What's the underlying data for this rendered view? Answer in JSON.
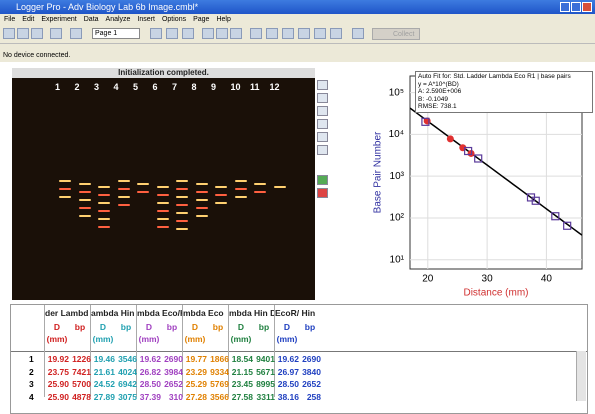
{
  "window": {
    "title": "Logger Pro - Adv Biology Lab 6b Image.cmbl*"
  },
  "menu": [
    "File",
    "Edit",
    "Experiment",
    "Data",
    "Analyze",
    "Insert",
    "Options",
    "Page",
    "Help"
  ],
  "toolbar": {
    "page": "Page 1",
    "collect": "Collect"
  },
  "status": "No device connected.",
  "image": {
    "caption": "Initialization completed.",
    "lanes": [
      "1",
      "2",
      "3",
      "4",
      "5",
      "6",
      "7",
      "8",
      "9",
      "10",
      "11",
      "12"
    ]
  },
  "graph": {
    "type": "scatter",
    "ylabel": "Base Pair Number",
    "xlabel": "Distance (mm)",
    "xlim": [
      17,
      46
    ],
    "xticks": [
      20,
      30,
      40
    ],
    "log_y": true,
    "ylim": [
      6,
      250000
    ],
    "yticks": [
      {
        "value": 10,
        "label": "10¹"
      },
      {
        "value": 100,
        "label": "10²"
      },
      {
        "value": 1000,
        "label": "10³"
      },
      {
        "value": 10000,
        "label": "10⁴"
      },
      {
        "value": 100000,
        "label": "10⁵"
      }
    ],
    "series": [
      {
        "name": "Std. Ladder Lambda Eco R1",
        "color": "#e03030",
        "marker": "circle",
        "x": [
          19.9,
          23.8,
          25.9,
          27.3
        ],
        "values": [
          21000,
          7800,
          4800,
          3500
        ]
      },
      {
        "name": "Lambda Eco/Hin",
        "color": "#5a3a9a",
        "marker": "square",
        "x": [
          19.6,
          26.8,
          28.5,
          37.4,
          38.2,
          41.5,
          43.5
        ],
        "values": [
          20000,
          4000,
          2650,
          310,
          258,
          110,
          65
        ]
      }
    ],
    "fit": {
      "A": 2590000,
      "B": -0.1049
    },
    "annotation": [
      "Auto Fit for: Std. Ladder Lambda Eco R1 | base pairs",
      "y = A*10^(BD)",
      "A: 2.590E+006",
      "B: -0.1049",
      "RMSE: 738.1"
    ]
  },
  "table": {
    "columns": [
      {
        "name": "der Lambd",
        "color": "#d02020"
      },
      {
        "name": "ambda Hin",
        "color": "#20a0b0"
      },
      {
        "name": "mbda Eco/H",
        "color": "#a040c0"
      },
      {
        "name": "mbda Eco",
        "color": "#e08000"
      },
      {
        "name": "mbda Hin D",
        "color": "#208040"
      },
      {
        "name": "EcoR/ Hin",
        "color": "#2040c0"
      }
    ],
    "sub": [
      "D",
      "(mm)",
      "bp"
    ],
    "rows": [
      {
        "index": "1",
        "cells": [
          "19.92",
          "1226",
          "19.46",
          "3546",
          "19.62",
          "2690",
          "19.77",
          "1866",
          "18.54",
          "9401",
          "19.62",
          "2690"
        ]
      },
      {
        "index": "2",
        "cells": [
          "23.75",
          "7421",
          "21.61",
          "4024",
          "26.82",
          "3984",
          "23.29",
          "9334",
          "21.15",
          "5671",
          "26.97",
          "3840"
        ]
      },
      {
        "index": "3",
        "cells": [
          "25.90",
          "5700",
          "24.52",
          "6942",
          "28.50",
          "2652",
          "25.29",
          "5769",
          "23.45",
          "8995",
          "28.50",
          "2652"
        ]
      },
      {
        "index": "4",
        "cells": [
          "25.90",
          "4878",
          "27.89",
          "3075",
          "37.39",
          "310",
          "27.28",
          "3566",
          "27.58",
          "3311",
          "38.16",
          "258"
        ]
      }
    ]
  }
}
